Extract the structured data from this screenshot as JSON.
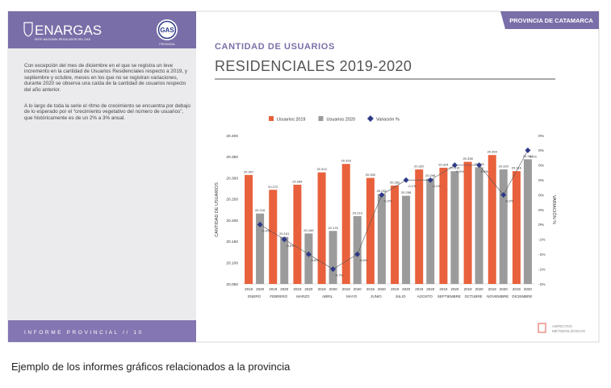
{
  "tab": "PROVINCIA DE CATAMARCA",
  "header": {
    "logo": "ENARGAS",
    "logo_subtitle": "ENTE NACIONAL REGULADOR DEL GAS",
    "badge": "GAS",
    "badge_caption": "PROVINCIA"
  },
  "sidebar": {
    "paragraphs": [
      "Con excepción del mes de diciembre en el que se registra un leve incremento en la cantidad de Usuarios Residenciales respecto a 2019, y septiembre y octubre, meses en los que no se registran variaciones, durante 2020 se observa una caída de la cantidad de usuarios respecto del año anterior.",
      "A lo largo de toda la serie el ritmo de crecimiento se encuentra por debajo de lo esperado por el “crecimiento vegetativo del número de usuarios”, que históricamente es de un 2% a 3% anual."
    ]
  },
  "footer": {
    "text": "INFORME PROVINCIAL // 10",
    "link_line1": "ASPECTOS",
    "link_line2": "METODOLÓGICOS"
  },
  "heading": {
    "kicker": "CANTIDAD DE USUARIOS",
    "title": "RESIDENCIALES 2019-2020"
  },
  "caption": "Ejemplo de los informes gráficos relacionados a la provincia",
  "chart_data": {
    "type": "bar",
    "categories": [
      "ENERO",
      "FEBRERO",
      "MARZO",
      "ABRIL",
      "MAYO",
      "JUNIO",
      "JULIO",
      "AGOSTO",
      "SEPTIEMBRE",
      "OCTUBRE",
      "NOVIEMBRE",
      "DICIEMBRE"
    ],
    "group_labels": [
      "2019",
      "2020"
    ],
    "y_label": "CANTIDAD DE USUARIOS",
    "y2_label": "VARIACIÓN %",
    "series": [
      {
        "name": "Usuarios 2019",
        "color": "#e8613c",
        "values": [
          20307,
          20272,
          20284,
          20313,
          20333,
          20300,
          20282,
          20320,
          20324,
          20338,
          20354,
          20316
        ],
        "value_labels": [
          "20.307",
          "20.272",
          "20.284",
          "20.313",
          "20.333",
          "20.300",
          "20.282",
          "20.320",
          "20.324",
          "20.338",
          "20.354",
          "20.316"
        ]
      },
      {
        "name": "Usuarios 2020",
        "color": "#9b9b9b",
        "values": [
          20216,
          20161,
          20169,
          20175,
          20210,
          20262,
          20258,
          20298,
          20316,
          20325,
          20320,
          20344
        ],
        "value_labels": [
          "20.216",
          "20.161",
          "20.169",
          "20.175",
          "20.210",
          "20.262",
          "20.258",
          "20.298",
          "20.316",
          "20.325",
          "20.320",
          "20.344"
        ]
      },
      {
        "name": "Variación %",
        "color": "#2e3a87",
        "axis": "y2",
        "values": [
          -0.4,
          -0.5,
          -0.6,
          -0.7,
          -0.6,
          -0.2,
          -0.1,
          -0.1,
          0.0,
          0.0,
          -0.2,
          0.1
        ],
        "value_labels": [
          "-0,4%",
          "-0,5%",
          "-0,6%",
          "-0,7%",
          "-0,6%",
          "-0,2%",
          "-0,1%",
          "-0,1%",
          "0,0%",
          "0,0%",
          "-0,2%",
          "0,1%"
        ]
      }
    ],
    "ylim": [
      20050,
      20400
    ],
    "yticks": [
      {
        "value": 20050,
        "label": "20.050"
      },
      {
        "value": 20100,
        "label": "20.100"
      },
      {
        "value": 20150,
        "label": "20.150"
      },
      {
        "value": 20200,
        "label": "20.200"
      },
      {
        "value": 20250,
        "label": "20.250"
      },
      {
        "value": 20300,
        "label": "20.300"
      },
      {
        "value": 20350,
        "label": "20.350"
      },
      {
        "value": 20400,
        "label": "20.400"
      }
    ],
    "y2lim": [
      -0.8,
      0.2
    ],
    "y2ticks": [
      {
        "value": -0.8,
        "label": "-1%"
      },
      {
        "value": -0.7,
        "label": "-1%"
      },
      {
        "value": -0.6,
        "label": "-1%"
      },
      {
        "value": -0.5,
        "label": "-1%"
      },
      {
        "value": -0.4,
        "label": "0%"
      },
      {
        "value": -0.3,
        "label": "0%"
      },
      {
        "value": -0.2,
        "label": "0%"
      },
      {
        "value": -0.1,
        "label": "0%"
      },
      {
        "value": 0,
        "label": "0%"
      },
      {
        "value": 0.1,
        "label": "0%"
      },
      {
        "value": 0.2,
        "label": "0%"
      }
    ],
    "grid": false,
    "legend": "top"
  }
}
